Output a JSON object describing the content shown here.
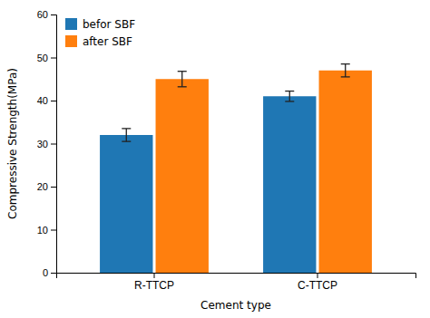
{
  "chart_data": {
    "type": "bar",
    "categories": [
      "R-TTCP",
      "C-TTCP"
    ],
    "series": [
      {
        "name": "befor SBF",
        "values": [
          32,
          41
        ],
        "errors": [
          1.5,
          1.2
        ]
      },
      {
        "name": "after SBF",
        "values": [
          45,
          47
        ],
        "errors": [
          1.8,
          1.5
        ]
      }
    ],
    "xlabel": "Cement type",
    "ylabel": "Compressive Strength(MPa)",
    "ylim": [
      0,
      60
    ],
    "yticks": [
      0,
      10,
      20,
      30,
      40,
      50,
      60
    ],
    "legend": "upper left"
  }
}
